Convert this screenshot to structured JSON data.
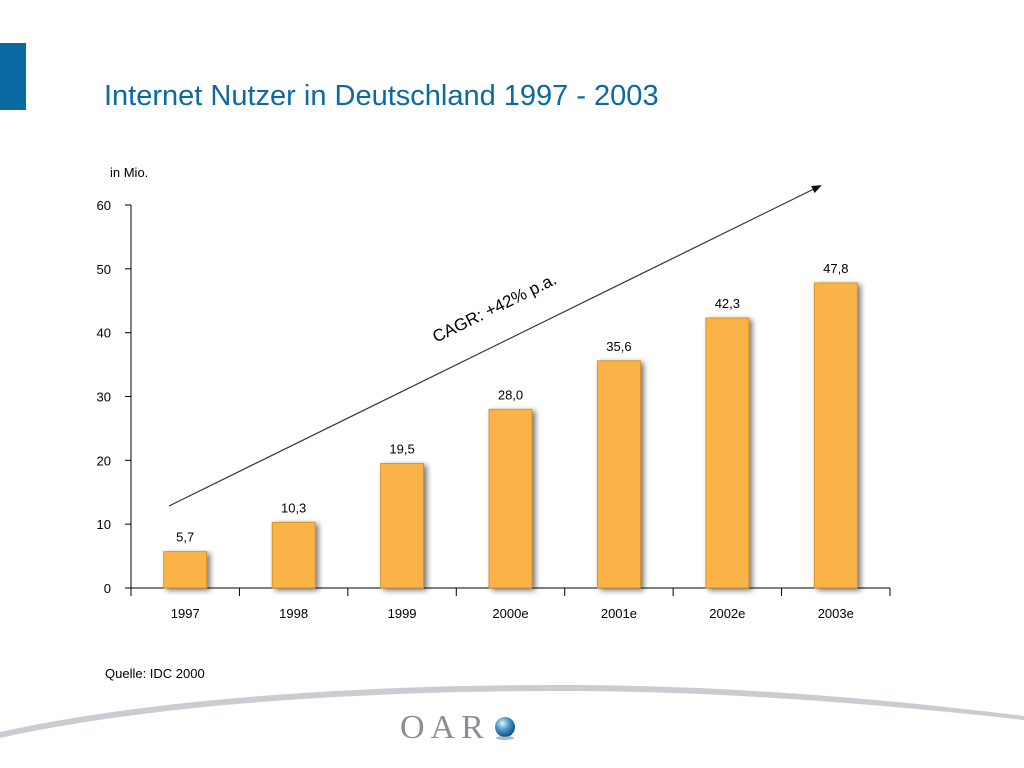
{
  "slide": {
    "title": "Internet Nutzer in Deutschland 1997 - 2003",
    "source": "Quelle: IDC 2000",
    "logo_text": "OAR",
    "accent_color": "#0a6aa1"
  },
  "chart_data": {
    "type": "bar",
    "ylabel": "in Mio.",
    "xlabel": "",
    "categories": [
      "1997",
      "1998",
      "1999",
      "2000e",
      "2001e",
      "2002e",
      "2003e"
    ],
    "values": [
      5.7,
      10.3,
      19.5,
      28.0,
      35.6,
      42.3,
      47.8
    ],
    "value_labels": [
      "5,7",
      "10,3",
      "19,5",
      "28,0",
      "35,6",
      "42,3",
      "47,8"
    ],
    "ylim": [
      0,
      60
    ],
    "yticks": [
      0,
      10,
      20,
      30,
      40,
      50,
      60
    ],
    "grid": false,
    "legend": "none",
    "bar_color": "#fbb247",
    "annotation": "CAGR: +42% p.a."
  }
}
